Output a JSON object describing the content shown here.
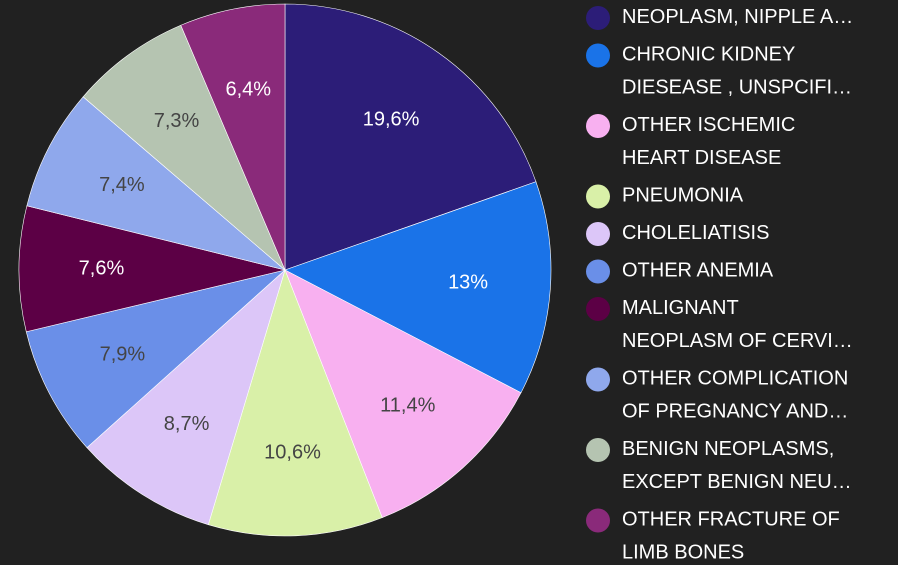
{
  "chart_data": {
    "type": "pie",
    "categories": [
      "NEOPLASM, NIPPLE A…",
      "CHRONIC KIDNEY\nDIESEASE , UNSPCIFI…",
      "OTHER ISCHEMIC\nHEART DISEASE",
      "PNEUMONIA",
      "CHOLELIATISIS",
      "OTHER ANEMIA",
      "MALIGNANT\nNEOPLASM OF CERVI…",
      "OTHER COMPLICATION\nOF PREGNANCY AND…",
      "BENIGN NEOPLASMS,\nEXCEPT BENIGN NEU…",
      "OTHER FRACTURE OF\nLIMB BONES"
    ],
    "values": [
      19.6,
      13,
      11.4,
      10.6,
      8.7,
      7.9,
      7.6,
      7.4,
      7.3,
      6.4
    ],
    "value_labels": [
      "19,6%",
      "13%",
      "11,4%",
      "10,6%",
      "8,7%",
      "7,9%",
      "7,6%",
      "7,4%",
      "7,3%",
      "6,4%"
    ],
    "colors": [
      "#2c1d78",
      "#1a73e8",
      "#f8b0f0",
      "#d9f0a8",
      "#dcc6f8",
      "#6a8fe8",
      "#5c0045",
      "#8fa8ec",
      "#b5c4b1",
      "#8a2a7a"
    ],
    "legend": "right"
  }
}
